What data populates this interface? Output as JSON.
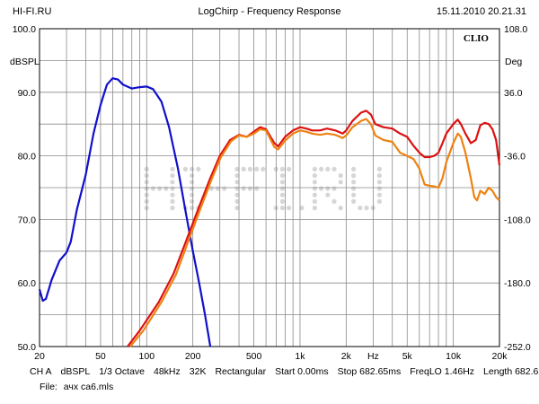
{
  "header": {
    "left": "HI-FI.RU",
    "title": "LogChirp - Frequency Response",
    "timestamp": "15.11.2010 20.21.31"
  },
  "chart_data": {
    "type": "line",
    "brand": "CLIO",
    "watermark": "HI-FI.RU",
    "xscale": "log",
    "xlim": [
      20,
      20000
    ],
    "ylim": [
      50,
      100
    ],
    "ylim_right": [
      -252,
      108
    ],
    "ylabel": "dBSPL",
    "ylabel_right": "Deg",
    "grid": true,
    "x_ticks": [
      {
        "v": 20,
        "label": "20"
      },
      {
        "v": 50,
        "label": "50"
      },
      {
        "v": 100,
        "label": "100"
      },
      {
        "v": 200,
        "label": "200"
      },
      {
        "v": 500,
        "label": "500"
      },
      {
        "v": 1000,
        "label": "1k"
      },
      {
        "v": 2000,
        "label": "2k"
      },
      {
        "v": 3000,
        "label": "Hz"
      },
      {
        "v": 5000,
        "label": "5k"
      },
      {
        "v": 10000,
        "label": "10k"
      },
      {
        "v": 20000,
        "label": "20k"
      }
    ],
    "y_ticks": [
      {
        "v": 100,
        "label": "100.0"
      },
      {
        "v": 90,
        "label": "90.0"
      },
      {
        "v": 80,
        "label": "80.0"
      },
      {
        "v": 70,
        "label": "70.0"
      },
      {
        "v": 60,
        "label": "60.0"
      },
      {
        "v": 50,
        "label": "50.0"
      }
    ],
    "y_ticks_right": [
      {
        "v": 100,
        "label": "108.0"
      },
      {
        "v": 90,
        "label": "36.0"
      },
      {
        "v": 80,
        "label": "-36.0"
      },
      {
        "v": 70,
        "label": "-108.0"
      },
      {
        "v": 60,
        "label": "-180.0"
      },
      {
        "v": 50,
        "label": "-252.0"
      }
    ],
    "series": [
      {
        "color": "#1010cc",
        "points": [
          [
            20,
            59
          ],
          [
            21,
            57.2
          ],
          [
            22,
            57.5
          ],
          [
            24,
            60.5
          ],
          [
            27,
            63.5
          ],
          [
            30,
            64.8
          ],
          [
            32,
            66.5
          ],
          [
            35,
            71.5
          ],
          [
            40,
            77
          ],
          [
            45,
            83.5
          ],
          [
            50,
            88
          ],
          [
            55,
            91.2
          ],
          [
            60,
            92.2
          ],
          [
            65,
            92
          ],
          [
            70,
            91.2
          ],
          [
            80,
            90.6
          ],
          [
            90,
            90.8
          ],
          [
            100,
            90.9
          ],
          [
            110,
            90.5
          ],
          [
            125,
            88.5
          ],
          [
            140,
            84.5
          ],
          [
            160,
            78
          ],
          [
            180,
            71
          ],
          [
            200,
            65
          ],
          [
            220,
            60
          ],
          [
            240,
            55
          ],
          [
            260,
            50
          ]
        ]
      },
      {
        "color": "#dd1111",
        "points": [
          [
            75,
            50
          ],
          [
            90,
            52.5
          ],
          [
            120,
            57
          ],
          [
            150,
            61.5
          ],
          [
            180,
            66.5
          ],
          [
            220,
            72
          ],
          [
            260,
            76.5
          ],
          [
            300,
            80
          ],
          [
            350,
            82.5
          ],
          [
            400,
            83.3
          ],
          [
            450,
            83
          ],
          [
            500,
            83.8
          ],
          [
            550,
            84.5
          ],
          [
            600,
            84.2
          ],
          [
            680,
            82
          ],
          [
            720,
            81.5
          ],
          [
            800,
            83
          ],
          [
            900,
            84
          ],
          [
            1000,
            84.5
          ],
          [
            1100,
            84.3
          ],
          [
            1200,
            84
          ],
          [
            1350,
            84
          ],
          [
            1500,
            84.3
          ],
          [
            1700,
            84
          ],
          [
            1900,
            83.5
          ],
          [
            2000,
            84
          ],
          [
            2200,
            85.5
          ],
          [
            2500,
            86.8
          ],
          [
            2700,
            87.1
          ],
          [
            2900,
            86.5
          ],
          [
            3100,
            85
          ],
          [
            3500,
            84.5
          ],
          [
            4000,
            84.3
          ],
          [
            4500,
            83.5
          ],
          [
            5000,
            83
          ],
          [
            5500,
            81.6
          ],
          [
            6000,
            80.5
          ],
          [
            6500,
            79.8
          ],
          [
            7000,
            79.8
          ],
          [
            7500,
            80
          ],
          [
            8000,
            80.5
          ],
          [
            8500,
            82
          ],
          [
            9000,
            83.5
          ],
          [
            10000,
            85
          ],
          [
            10700,
            85.7
          ],
          [
            11200,
            85
          ],
          [
            12000,
            83.5
          ],
          [
            13000,
            82
          ],
          [
            14000,
            82.5
          ],
          [
            15000,
            84.8
          ],
          [
            16000,
            85.2
          ],
          [
            17000,
            85
          ],
          [
            18000,
            84.2
          ],
          [
            19000,
            82.5
          ],
          [
            20000,
            78.5
          ]
        ]
      },
      {
        "color": "#ee8211",
        "points": [
          [
            78,
            50
          ],
          [
            95,
            52.5
          ],
          [
            125,
            57
          ],
          [
            155,
            61.3
          ],
          [
            185,
            66.3
          ],
          [
            225,
            71.8
          ],
          [
            265,
            76.3
          ],
          [
            305,
            79.8
          ],
          [
            355,
            82.3
          ],
          [
            400,
            83.2
          ],
          [
            450,
            83
          ],
          [
            500,
            83.5
          ],
          [
            550,
            84.2
          ],
          [
            600,
            84
          ],
          [
            680,
            81.4
          ],
          [
            720,
            81
          ],
          [
            800,
            82.4
          ],
          [
            900,
            83.5
          ],
          [
            1000,
            84
          ],
          [
            1100,
            83.8
          ],
          [
            1200,
            83.5
          ],
          [
            1350,
            83.3
          ],
          [
            1500,
            83.5
          ],
          [
            1700,
            83.3
          ],
          [
            1900,
            82.8
          ],
          [
            2000,
            83.2
          ],
          [
            2200,
            84.5
          ],
          [
            2500,
            85.5
          ],
          [
            2700,
            85.8
          ],
          [
            2900,
            85
          ],
          [
            3100,
            83.2
          ],
          [
            3500,
            82.5
          ],
          [
            4000,
            82.2
          ],
          [
            4500,
            80.5
          ],
          [
            5000,
            80
          ],
          [
            5500,
            79.5
          ],
          [
            6000,
            78
          ],
          [
            6500,
            75.5
          ],
          [
            7000,
            75.3
          ],
          [
            7500,
            75.2
          ],
          [
            8000,
            75
          ],
          [
            8500,
            76.5
          ],
          [
            9000,
            79
          ],
          [
            10000,
            82
          ],
          [
            10700,
            83.5
          ],
          [
            11200,
            83
          ],
          [
            12000,
            80.5
          ],
          [
            13000,
            76.5
          ],
          [
            13700,
            73.5
          ],
          [
            14300,
            73
          ],
          [
            15000,
            74.5
          ],
          [
            16000,
            74
          ],
          [
            17000,
            75
          ],
          [
            18000,
            74.5
          ],
          [
            19000,
            73.5
          ],
          [
            20000,
            73
          ]
        ]
      }
    ]
  },
  "footer": {
    "items": [
      "CH A",
      "dBSPL",
      "1/3 Octave",
      "48kHz",
      "32K",
      "Rectangular",
      "Start 0.00ms",
      "Stop 682.65ms",
      "FreqLO 1.46Hz",
      "Length 682.65ms"
    ],
    "file_label": "File:",
    "file_name": "ачх са6.mls"
  }
}
